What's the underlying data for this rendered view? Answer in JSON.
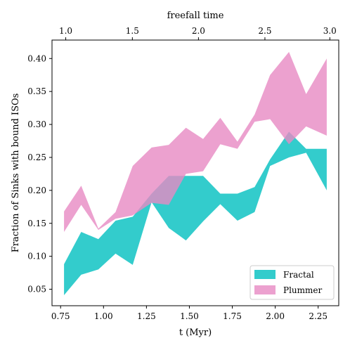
{
  "chart_data": {
    "type": "area",
    "xlabel": "t (Myr)",
    "ylabel": "Fraction of Sinks with bound ISOs",
    "top_xlabel": "freefall time",
    "xlim": [
      0.7,
      2.37
    ],
    "ylim": [
      0.025,
      0.428
    ],
    "x_ticks": [
      "0.75",
      "1.00",
      "1.25",
      "1.50",
      "1.75",
      "2.00",
      "2.25"
    ],
    "y_ticks": [
      "0.05",
      "0.10",
      "0.15",
      "0.20",
      "0.25",
      "0.30",
      "0.35",
      "0.40"
    ],
    "top_ticks": [
      "1.0",
      "1.5",
      "2.0",
      "2.5",
      "3.0"
    ],
    "top_tick_positions_t": [
      0.78,
      1.168,
      1.553,
      1.94,
      2.318
    ],
    "grid": false,
    "legend_position": "lower-right",
    "series": [
      {
        "name": "Fractal",
        "color": "#00bfbf",
        "x": [
          0.77,
          0.87,
          0.97,
          1.07,
          1.17,
          1.28,
          1.38,
          1.48,
          1.58,
          1.68,
          1.78,
          1.88,
          1.97,
          2.08,
          2.18,
          2.3
        ],
        "lower": [
          0.041,
          0.072,
          0.08,
          0.104,
          0.087,
          0.182,
          0.143,
          0.124,
          0.153,
          0.179,
          0.154,
          0.167,
          0.237,
          0.25,
          0.257,
          0.2
        ],
        "upper": [
          0.088,
          0.137,
          0.126,
          0.154,
          0.16,
          0.195,
          0.222,
          0.222,
          0.222,
          0.195,
          0.195,
          0.205,
          0.247,
          0.289,
          0.263,
          0.263
        ]
      },
      {
        "name": "Plummer",
        "color": "#e78ac3",
        "x": [
          0.77,
          0.87,
          0.97,
          1.07,
          1.17,
          1.28,
          1.38,
          1.48,
          1.58,
          1.68,
          1.78,
          1.88,
          1.97,
          2.08,
          2.18,
          2.3
        ],
        "lower": [
          0.137,
          0.178,
          0.14,
          0.157,
          0.162,
          0.181,
          0.178,
          0.225,
          0.229,
          0.27,
          0.263,
          0.304,
          0.308,
          0.27,
          0.297,
          0.283
        ],
        "upper": [
          0.168,
          0.207,
          0.142,
          0.167,
          0.237,
          0.265,
          0.269,
          0.295,
          0.278,
          0.31,
          0.274,
          0.315,
          0.375,
          0.41,
          0.346,
          0.4
        ]
      }
    ]
  }
}
